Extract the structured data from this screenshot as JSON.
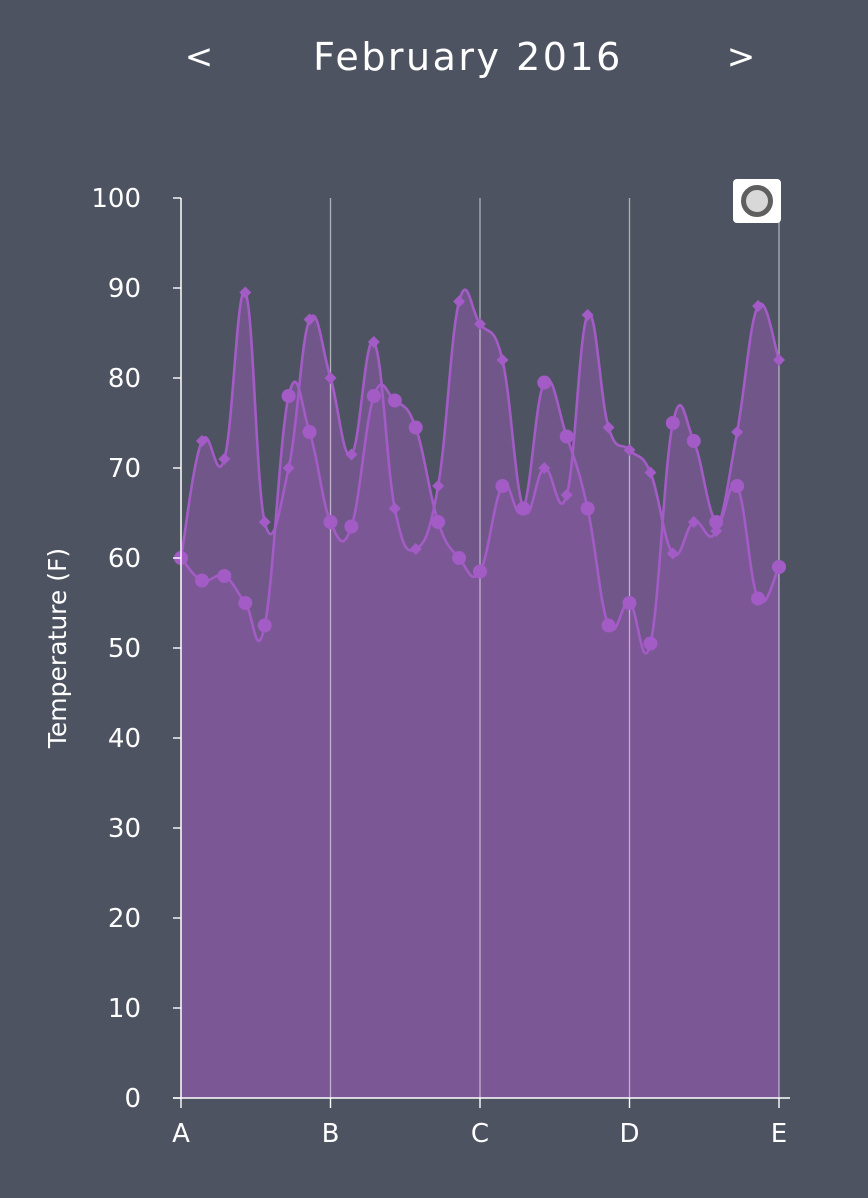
{
  "header": {
    "prev_label": "<",
    "title": "February 2016",
    "next_label": ">"
  },
  "legend_toggle": {
    "icon": "radio-circle-icon"
  },
  "colors": {
    "background": "#4e5361",
    "series_line": "#a35bc6",
    "area_fill": "#7f589a",
    "grid": "#ffffff"
  },
  "chart_data": {
    "type": "area",
    "title": "",
    "xlabel": "",
    "ylabel": "Temperature (F)",
    "ylim": [
      0,
      100
    ],
    "xlim": [
      0,
      4
    ],
    "y_ticks": [
      0,
      10,
      20,
      30,
      40,
      50,
      60,
      70,
      80,
      90,
      100
    ],
    "x_ticks": [
      {
        "value": 0,
        "label": "A"
      },
      {
        "value": 1,
        "label": "B"
      },
      {
        "value": 2,
        "label": "C"
      },
      {
        "value": 3,
        "label": "D"
      },
      {
        "value": 4,
        "label": "E"
      }
    ],
    "grid": "vertical",
    "legend": "top-right",
    "series": [
      {
        "marker": "diamond",
        "points": [
          [
            0.0,
            60
          ],
          [
            0.14,
            73
          ],
          [
            0.29,
            71
          ],
          [
            0.43,
            89.5
          ],
          [
            0.56,
            64
          ],
          [
            0.72,
            70
          ],
          [
            0.86,
            86.5
          ],
          [
            1.0,
            80
          ],
          [
            1.14,
            71.5
          ],
          [
            1.29,
            84
          ],
          [
            1.43,
            65.5
          ],
          [
            1.57,
            61
          ],
          [
            1.72,
            68
          ],
          [
            1.86,
            88.5
          ],
          [
            2.0,
            86
          ],
          [
            2.15,
            82
          ],
          [
            2.29,
            65.5
          ],
          [
            2.43,
            70
          ],
          [
            2.58,
            67
          ],
          [
            2.72,
            87
          ],
          [
            2.86,
            74.5
          ],
          [
            3.0,
            72
          ],
          [
            3.14,
            69.5
          ],
          [
            3.29,
            60.5
          ],
          [
            3.43,
            64
          ],
          [
            3.58,
            63
          ],
          [
            3.72,
            74
          ],
          [
            3.86,
            88
          ],
          [
            4.0,
            82
          ]
        ]
      },
      {
        "marker": "circle",
        "points": [
          [
            0.0,
            60
          ],
          [
            0.14,
            57.5
          ],
          [
            0.29,
            58
          ],
          [
            0.43,
            55
          ],
          [
            0.56,
            52.5
          ],
          [
            0.72,
            78
          ],
          [
            0.86,
            74
          ],
          [
            1.0,
            64
          ],
          [
            1.14,
            63.5
          ],
          [
            1.29,
            78
          ],
          [
            1.43,
            77.5
          ],
          [
            1.57,
            74.5
          ],
          [
            1.72,
            64
          ],
          [
            1.86,
            60
          ],
          [
            2.0,
            58.5
          ],
          [
            2.15,
            68
          ],
          [
            2.29,
            65.5
          ],
          [
            2.43,
            79.5
          ],
          [
            2.58,
            73.5
          ],
          [
            2.72,
            65.5
          ],
          [
            2.86,
            52.5
          ],
          [
            3.0,
            55
          ],
          [
            3.14,
            50.5
          ],
          [
            3.29,
            75
          ],
          [
            3.43,
            73
          ],
          [
            3.58,
            64
          ],
          [
            3.72,
            68
          ],
          [
            3.86,
            55.5
          ],
          [
            4.0,
            59
          ]
        ]
      }
    ]
  }
}
